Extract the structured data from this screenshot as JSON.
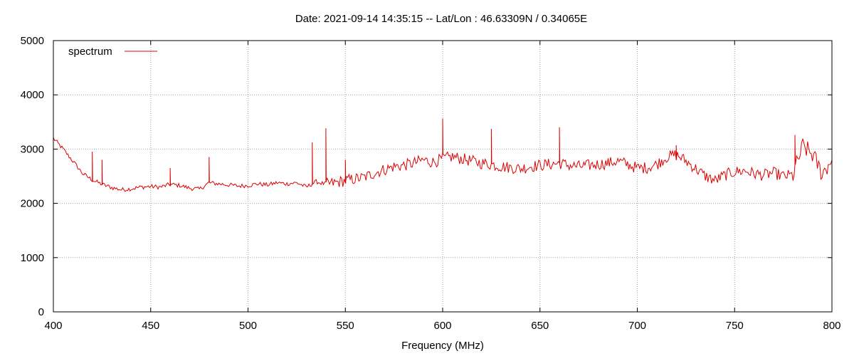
{
  "chart_data": {
    "type": "line",
    "title": "Date: 2021-09-14 14:35:15  --  Lat/Lon : 46.63309N / 0.34065E",
    "xlabel": "Frequency (MHz)",
    "ylabel": "",
    "xlim": [
      400,
      800
    ],
    "ylim": [
      0,
      5000
    ],
    "x_ticks": [
      400,
      450,
      500,
      550,
      600,
      650,
      700,
      750,
      800
    ],
    "y_ticks": [
      0,
      1000,
      2000,
      3000,
      4000,
      5000
    ],
    "grid": true,
    "legend_position": "top-left",
    "color": "#dd0000",
    "series": [
      {
        "name": "spectrum",
        "x": [
          400,
          405,
          410,
          415,
          420,
          425,
          430,
          435,
          440,
          445,
          450,
          455,
          460,
          465,
          470,
          475,
          480,
          485,
          490,
          495,
          500,
          505,
          510,
          515,
          520,
          525,
          530,
          535,
          540,
          545,
          550,
          555,
          560,
          565,
          570,
          575,
          580,
          585,
          590,
          595,
          600,
          605,
          610,
          615,
          620,
          625,
          630,
          635,
          640,
          645,
          650,
          655,
          660,
          665,
          670,
          675,
          680,
          685,
          690,
          695,
          700,
          705,
          710,
          715,
          720,
          725,
          730,
          735,
          740,
          745,
          750,
          755,
          760,
          765,
          770,
          775,
          780,
          785,
          790,
          795,
          800
        ],
        "values": [
          3200,
          3000,
          2780,
          2550,
          2430,
          2350,
          2290,
          2250,
          2270,
          2300,
          2310,
          2300,
          2350,
          2330,
          2280,
          2260,
          2380,
          2360,
          2340,
          2320,
          2330,
          2360,
          2340,
          2380,
          2360,
          2380,
          2300,
          2400,
          2350,
          2380,
          2420,
          2450,
          2480,
          2560,
          2620,
          2680,
          2700,
          2740,
          2800,
          2760,
          2820,
          2860,
          2820,
          2780,
          2740,
          2720,
          2680,
          2660,
          2640,
          2680,
          2700,
          2720,
          2740,
          2700,
          2680,
          2700,
          2720,
          2740,
          2780,
          2720,
          2650,
          2660,
          2720,
          2850,
          2900,
          2780,
          2640,
          2500,
          2420,
          2520,
          2580,
          2600,
          2550,
          2520,
          2560,
          2500,
          2520,
          3050,
          2900,
          2550,
          2800
        ]
      }
    ],
    "spikes": [
      {
        "x": 420,
        "y": 2950
      },
      {
        "x": 425,
        "y": 2800
      },
      {
        "x": 460,
        "y": 2650
      },
      {
        "x": 480,
        "y": 2850
      },
      {
        "x": 533,
        "y": 3120
      },
      {
        "x": 540,
        "y": 3380
      },
      {
        "x": 550,
        "y": 2800
      },
      {
        "x": 600,
        "y": 3560
      },
      {
        "x": 625,
        "y": 3370
      },
      {
        "x": 660,
        "y": 3400
      },
      {
        "x": 720,
        "y": 3070
      },
      {
        "x": 781,
        "y": 3260
      }
    ]
  }
}
